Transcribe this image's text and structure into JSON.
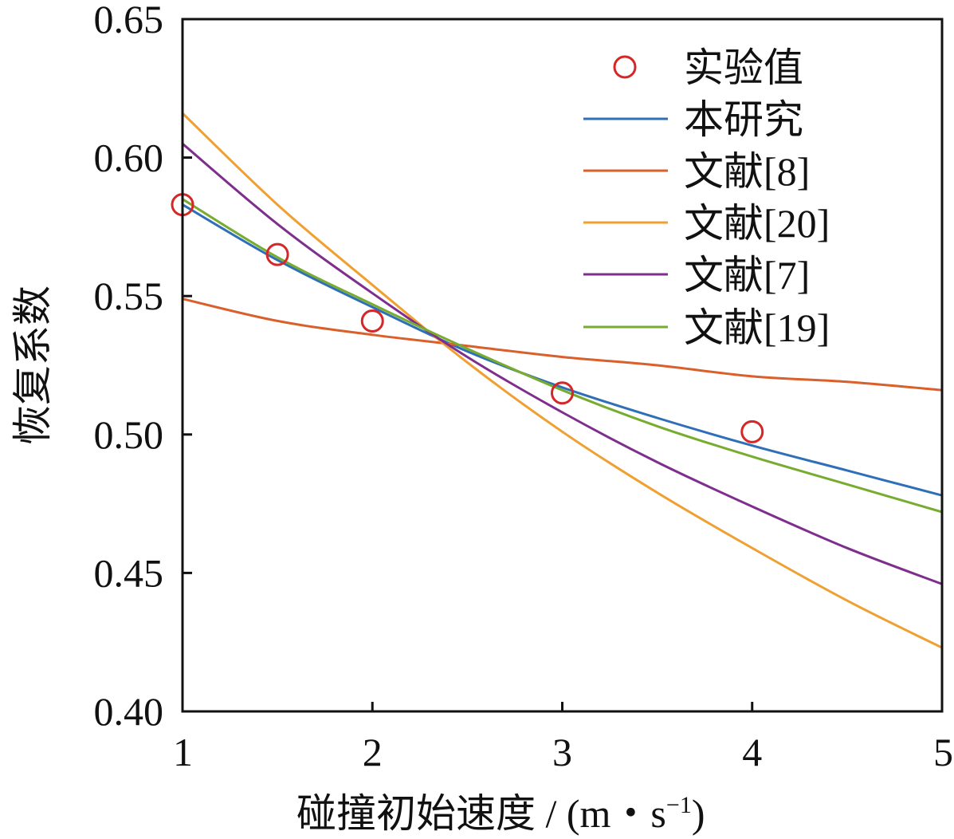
{
  "chart_data": {
    "type": "line",
    "xlabel": "碰撞初始速度 / (m・s⁻¹)",
    "xlabel_main": "碰撞初始速度 / (m・s",
    "xlabel_sup": "−1",
    "xlabel_close": ")",
    "ylabel": "恢复系数",
    "xlim": [
      1,
      5
    ],
    "ylim": [
      0.4,
      0.65
    ],
    "xticks": [
      1,
      2,
      3,
      4,
      5
    ],
    "xtick_labels": [
      "1",
      "2",
      "3",
      "4",
      "5"
    ],
    "yticks": [
      0.4,
      0.45,
      0.5,
      0.55,
      0.6,
      0.65
    ],
    "ytick_labels": [
      "0.40",
      "0.45",
      "0.50",
      "0.55",
      "0.60",
      "0.65"
    ],
    "legend_position": "top-right",
    "scatter": {
      "name": "实验值",
      "color": "#d62728",
      "x": [
        1,
        1.5,
        2,
        3,
        4
      ],
      "y": [
        0.583,
        0.565,
        0.541,
        0.515,
        0.501
      ]
    },
    "series": [
      {
        "name": "本研究",
        "color": "#2e6fb7",
        "x": [
          1,
          1.5,
          2,
          2.5,
          3,
          3.5,
          4,
          4.5,
          5
        ],
        "y": [
          0.583,
          0.563,
          0.546,
          0.53,
          0.517,
          0.506,
          0.496,
          0.487,
          0.478
        ]
      },
      {
        "name": "文献[8]",
        "color": "#d95f2b",
        "x": [
          1,
          1.5,
          2,
          2.5,
          3,
          3.5,
          4,
          4.5,
          5
        ],
        "y": [
          0.549,
          0.541,
          0.536,
          0.532,
          0.528,
          0.525,
          0.521,
          0.519,
          0.516
        ]
      },
      {
        "name": "文献[20]",
        "color": "#f0a030",
        "x": [
          1,
          1.5,
          2,
          2.5,
          3,
          3.5,
          4,
          4.5,
          5
        ],
        "y": [
          0.616,
          0.583,
          0.554,
          0.526,
          0.501,
          0.479,
          0.459,
          0.44,
          0.423
        ]
      },
      {
        "name": "文献[7]",
        "color": "#7e2f8e",
        "x": [
          1,
          1.5,
          2,
          2.5,
          3,
          3.5,
          4,
          4.5,
          5
        ],
        "y": [
          0.605,
          0.576,
          0.551,
          0.528,
          0.508,
          0.49,
          0.474,
          0.459,
          0.446
        ]
      },
      {
        "name": "文献[19]",
        "color": "#77ac30",
        "x": [
          1,
          1.5,
          2,
          2.5,
          3,
          3.5,
          4,
          4.5,
          5
        ],
        "y": [
          0.585,
          0.564,
          0.547,
          0.531,
          0.516,
          0.503,
          0.492,
          0.482,
          0.472
        ]
      }
    ]
  }
}
